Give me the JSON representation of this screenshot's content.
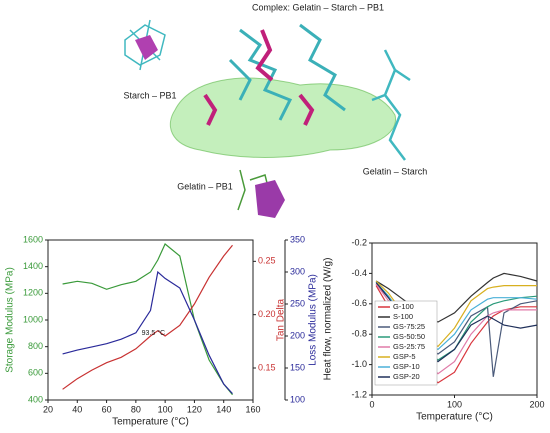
{
  "labels": {
    "complex": "Complex: Gelatin – Starch – PB1",
    "starch_pb1": "Starch – PB1",
    "gelatin_pb1": "Gelatin – PB1",
    "gelatin_starch": "Gelatin – Starch"
  },
  "chart_data": [
    {
      "type": "line",
      "xlabel": "Temperature (°C)",
      "ylabel": "Storage Modulus (MPa)",
      "y2label": "Loss Modulus (MPa)",
      "y3label": "Tan Delta",
      "annotation": "93.5 °C",
      "x": [
        30,
        40,
        50,
        60,
        70,
        80,
        90,
        95,
        100,
        110,
        120,
        130,
        140,
        146
      ],
      "xlim": [
        20,
        160
      ],
      "xticks": [
        20,
        40,
        60,
        80,
        100,
        120,
        140,
        160
      ],
      "ylim": [
        400,
        1600
      ],
      "yticks": [
        400,
        600,
        800,
        1000,
        1200,
        1400,
        1600
      ],
      "y2lim": [
        100,
        350
      ],
      "y2ticks": [
        100,
        150,
        200,
        250,
        300,
        350
      ],
      "y3lim": [
        0.12,
        0.27
      ],
      "y3ticks": [
        0.15,
        {
          "value": 0.2,
          "label": "0.20"
        },
        0.25
      ],
      "series": [
        {
          "name": "Storage Modulus",
          "color": "#3a9a3a",
          "axis": "y",
          "values": [
            1270,
            1290,
            1275,
            1230,
            1265,
            1290,
            1360,
            1450,
            1570,
            1480,
            1000,
            700,
            520,
            440
          ]
        },
        {
          "name": "Tan Delta",
          "color": "#c83232",
          "axis": "y3",
          "values": [
            0.13,
            0.14,
            0.148,
            0.155,
            0.16,
            0.168,
            0.18,
            0.185,
            0.18,
            0.19,
            0.21,
            0.235,
            0.255,
            0.265
          ]
        },
        {
          "name": "Loss Modulus",
          "color": "#2a2a9a",
          "axis": "y2",
          "values": [
            172,
            178,
            183,
            188,
            195,
            205,
            240,
            300,
            290,
            275,
            225,
            170,
            125,
            110
          ]
        }
      ]
    },
    {
      "type": "line",
      "xlabel": "Temperature (°C)",
      "ylabel": "Heat flow, normalized (W/g)",
      "legend": "lower left",
      "x": [
        5,
        20,
        40,
        60,
        80,
        100,
        120,
        140,
        147,
        160,
        180,
        200
      ],
      "xlim": [
        0,
        200
      ],
      "xticks": [
        0,
        100,
        200
      ],
      "ylim": [
        -1.2,
        -0.2
      ],
      "yticks": [
        {
          "value": -1.2,
          "label": "-1.2"
        },
        {
          "value": -1,
          "label": "-1.0"
        },
        -0.8,
        -0.6,
        -0.4,
        -0.2
      ],
      "series": [
        {
          "name": "G-100",
          "color": "#d9363e",
          "values": [
            -0.48,
            -0.62,
            -0.82,
            -1.02,
            -1.12,
            -1.05,
            -0.86,
            -0.72,
            -0.68,
            -0.64,
            -0.62,
            -0.62
          ]
        },
        {
          "name": "S-100",
          "color": "#333333",
          "values": [
            -0.45,
            -0.5,
            -0.58,
            -0.67,
            -0.72,
            -0.66,
            -0.55,
            -0.46,
            -0.43,
            -0.4,
            -0.42,
            -0.45
          ]
        },
        {
          "name": "GS-75:25",
          "color": "#4a5a7a",
          "values": [
            -0.47,
            -0.56,
            -0.7,
            -0.85,
            -0.93,
            -0.85,
            -0.68,
            -0.62,
            -1.08,
            -0.66,
            -0.6,
            -0.58
          ]
        },
        {
          "name": "GS-50:50",
          "color": "#2a9a7a",
          "values": [
            -0.46,
            -0.55,
            -0.7,
            -0.88,
            -0.97,
            -0.9,
            -0.72,
            -0.62,
            -0.6,
            -0.58,
            -0.56,
            -0.55
          ]
        },
        {
          "name": "GS-25:75",
          "color": "#e07aa8",
          "values": [
            -0.47,
            -0.58,
            -0.76,
            -0.96,
            -1.06,
            -0.98,
            -0.8,
            -0.68,
            -0.66,
            -0.64,
            -0.64,
            -0.64
          ]
        },
        {
          "name": "GSP-5",
          "color": "#d8b020",
          "values": [
            -0.45,
            -0.53,
            -0.68,
            -0.82,
            -0.88,
            -0.76,
            -0.58,
            -0.5,
            -0.49,
            -0.48,
            -0.48,
            -0.48
          ]
        },
        {
          "name": "GSP-10",
          "color": "#4ab0d8",
          "values": [
            -0.46,
            -0.55,
            -0.7,
            -0.84,
            -0.9,
            -0.8,
            -0.64,
            -0.57,
            -0.56,
            -0.56,
            -0.56,
            -0.57
          ]
        },
        {
          "name": "GSP-20",
          "color": "#20305a",
          "values": [
            -0.46,
            -0.56,
            -0.72,
            -0.9,
            -0.98,
            -0.9,
            -0.74,
            -0.68,
            -0.7,
            -0.74,
            -0.76,
            -0.74
          ]
        }
      ]
    }
  ]
}
